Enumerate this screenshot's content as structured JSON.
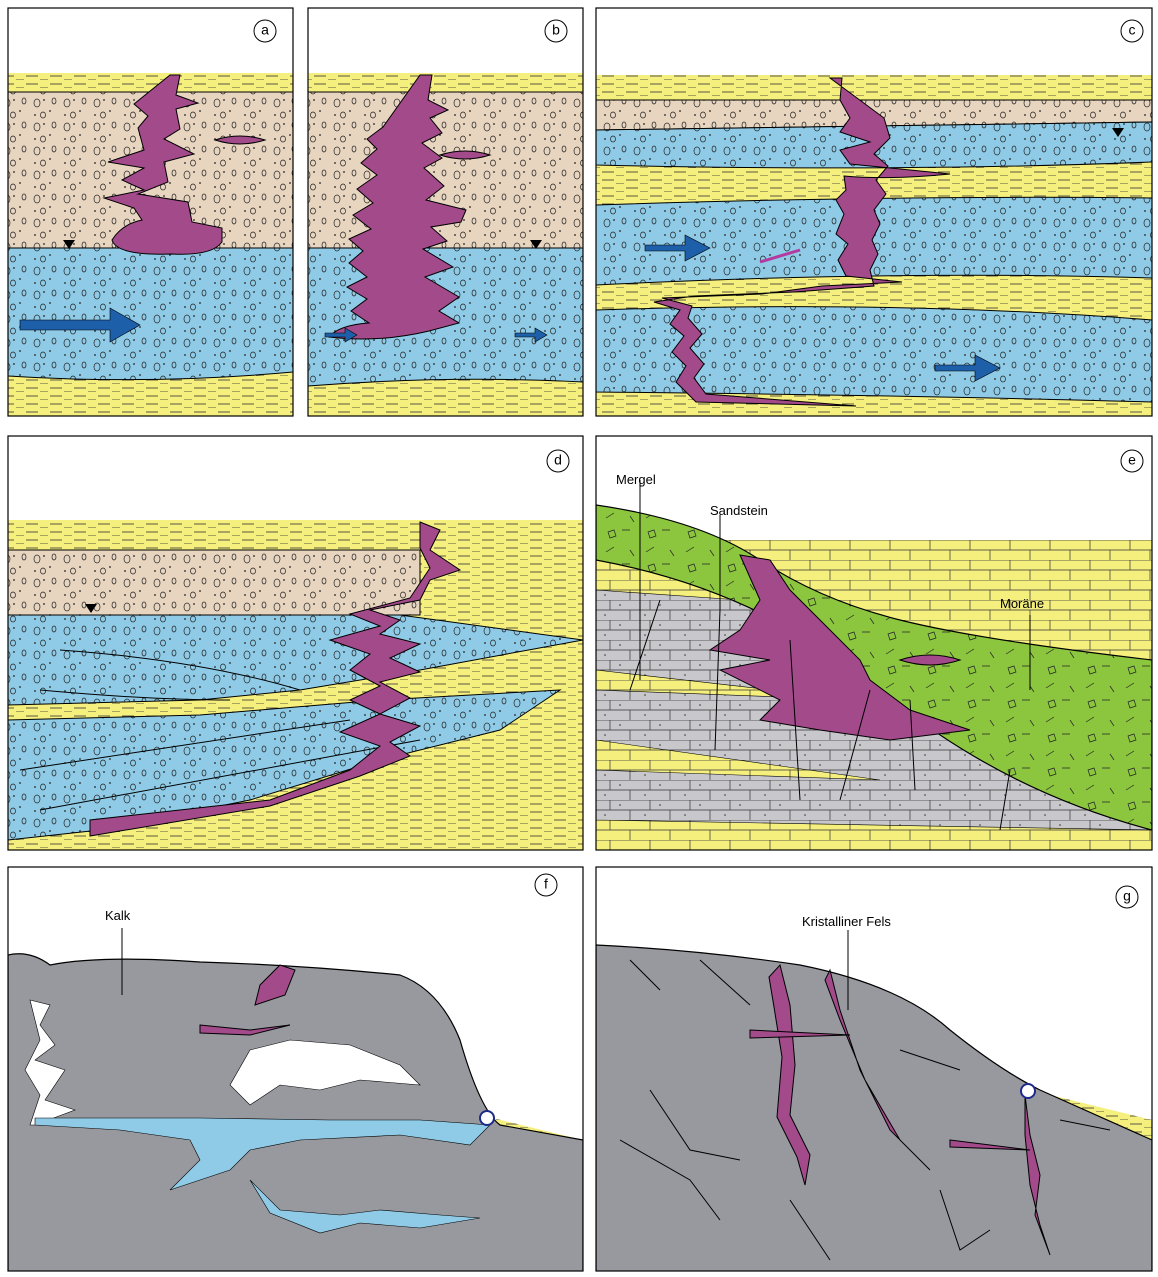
{
  "panels": [
    {
      "label": "a"
    },
    {
      "label": "b"
    },
    {
      "label": "c"
    },
    {
      "label": "d"
    },
    {
      "label": "e",
      "texts": [
        "Mergel",
        "Sandstein",
        "Moräne"
      ]
    },
    {
      "label": "f",
      "texts": [
        "Kalk"
      ]
    },
    {
      "label": "g",
      "texts": [
        "Kristalliner Fels"
      ]
    }
  ]
}
